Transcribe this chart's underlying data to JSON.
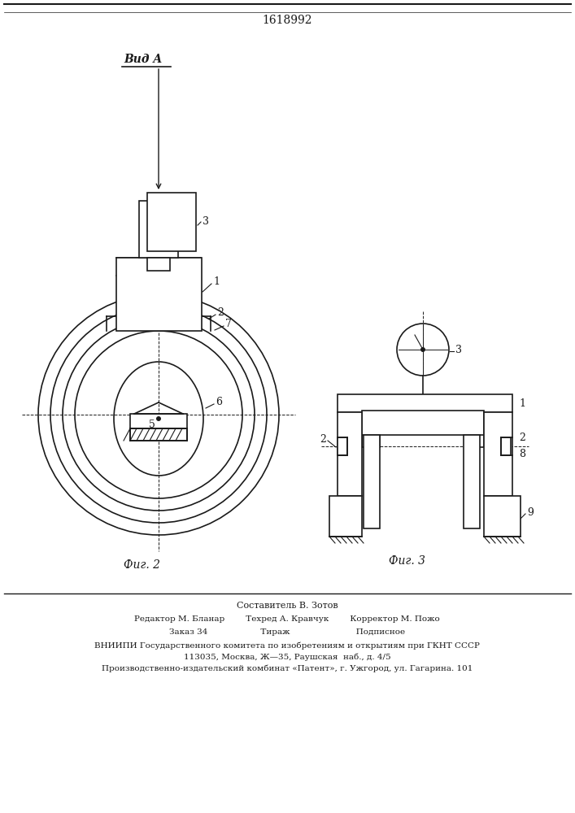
{
  "title_number": "1618992",
  "fig2_label": "Фиг. 2",
  "fig3_label": "Фиг. 3",
  "vid_a_label": "Вид A",
  "footer_lines": [
    "Составитель В. Зотов",
    "Редактор М. Бланар        Техред А. Кравчук        Корректор М. Пожо",
    "Заказ 34                    Тираж                         Подписное",
    "ВНИИПИ Государственного комитета по изобретениям и открытиям при ГКНТ СССР",
    "113035, Москва, Ж—35, Раушская  наб., д. 4/5",
    "Производственно-издательский комбинат «Патент», г. Ужгород, ул. Гагарина. 101"
  ],
  "bg_color": "#ffffff",
  "line_color": "#1a1a1a"
}
